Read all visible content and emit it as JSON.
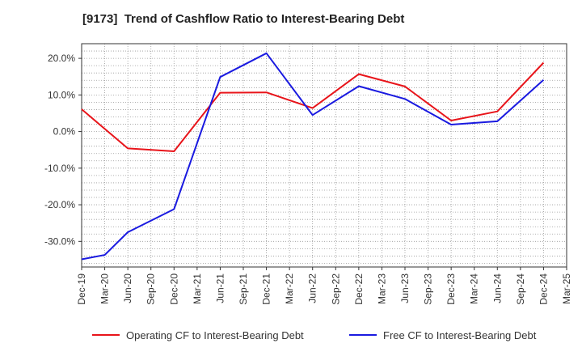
{
  "chart_data": {
    "type": "line",
    "title": "[9173]  Trend of Cashflow Ratio to Interest-Bearing Debt",
    "xlabel": "",
    "ylabel": "",
    "categories": [
      "Dec-19",
      "Mar-20",
      "Jun-20",
      "Sep-20",
      "Dec-20",
      "Mar-21",
      "Jun-21",
      "Sep-21",
      "Dec-21",
      "Mar-22",
      "Jun-22",
      "Sep-22",
      "Dec-22",
      "Mar-23",
      "Jun-23",
      "Sep-23",
      "Dec-23",
      "Mar-24",
      "Jun-24",
      "Sep-24",
      "Dec-24",
      "Mar-25"
    ],
    "ylim": [
      -37,
      24
    ],
    "yticks": [
      20,
      10,
      0,
      -10,
      -20,
      -30
    ],
    "ytick_labels": [
      "20.0%",
      "10.0%",
      "0.0%",
      "-10.0%",
      "-20.0%",
      "-30.0%"
    ],
    "grid": true,
    "legend_position": "bottom",
    "series": [
      {
        "name": "Operating CF to Interest-Bearing Debt",
        "color": "#e8141a",
        "values": [
          6.1,
          null,
          -4.6,
          null,
          -5.4,
          null,
          10.6,
          null,
          10.7,
          null,
          6.4,
          null,
          15.7,
          null,
          12.3,
          null,
          3.0,
          null,
          5.5,
          null,
          18.8,
          null
        ]
      },
      {
        "name": "Free CF to Interest-Bearing Debt",
        "color": "#1a1ae0",
        "values": [
          -34.9,
          -33.7,
          -27.5,
          null,
          -21.2,
          null,
          14.9,
          null,
          21.4,
          null,
          4.5,
          null,
          12.4,
          null,
          8.9,
          null,
          1.9,
          null,
          2.8,
          null,
          14.1,
          null
        ]
      }
    ]
  }
}
